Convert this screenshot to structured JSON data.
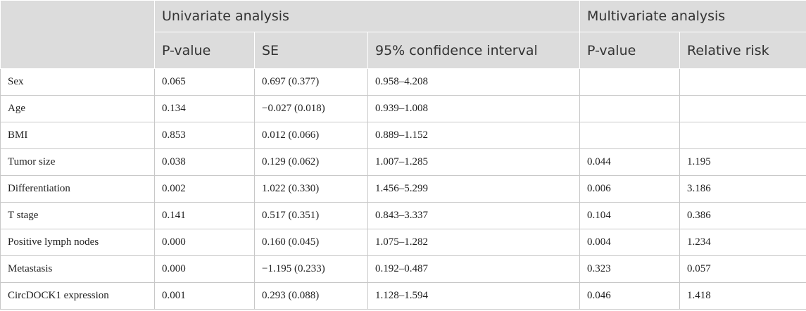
{
  "header": {
    "group_univariate": "Univariate analysis",
    "group_multivariate": "Multivariate analysis",
    "columns": [
      "P-value",
      "SE",
      "95% confidence interval",
      "P-value",
      "Relative risk"
    ]
  },
  "rows": [
    [
      "Sex",
      "0.065",
      "0.697 (0.377)",
      "0.958–4.208",
      "",
      ""
    ],
    [
      "Age",
      "0.134",
      "−0.027 (0.018)",
      "0.939–1.008",
      "",
      ""
    ],
    [
      "BMI",
      "0.853",
      "0.012 (0.066)",
      "0.889–1.152",
      "",
      ""
    ],
    [
      "Tumor size",
      "0.038",
      "0.129 (0.062)",
      "1.007–1.285",
      "0.044",
      "1.195"
    ],
    [
      "Differentiation",
      "0.002",
      "1.022 (0.330)",
      "1.456–5.299",
      "0.006",
      "3.186"
    ],
    [
      "T stage",
      "0.141",
      "0.517 (0.351)",
      "0.843–3.337",
      "0.104",
      "0.386"
    ],
    [
      "Positive lymph nodes",
      "0.000",
      "0.160 (0.045)",
      "1.075–1.282",
      "0.004",
      "1.234"
    ],
    [
      "Metastasis",
      "0.000",
      "−1.195 (0.233)",
      "0.192–0.487",
      "0.323",
      "0.057"
    ],
    [
      "CircDOCK1 expression",
      "0.001",
      "0.293 (0.088)",
      "1.128–1.594",
      "0.046",
      "1.418"
    ]
  ]
}
